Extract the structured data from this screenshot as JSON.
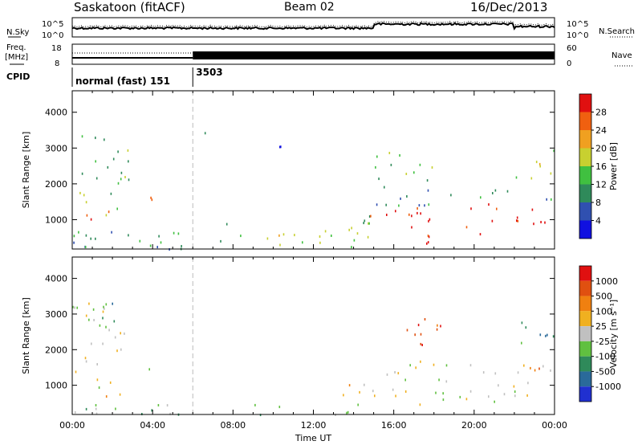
{
  "header": {
    "station": "Saskatoon (fitACF)",
    "beam": "Beam 02",
    "date": "16/Dec/2013"
  },
  "top_panels": {
    "noise_left_label": "N.Sky",
    "noise_right_label": "N.Search",
    "noise_ticks": [
      "10^5",
      "10^0"
    ],
    "freq_label_line1": "Freq.",
    "freq_label_line2": "[MHz]",
    "freq_ticks": [
      "18",
      "8"
    ],
    "nave_label": "Nave",
    "nave_ticks": [
      "60",
      "0"
    ],
    "cpid_label": "CPID",
    "cpid_segments": [
      {
        "text": "normal (fast) 151",
        "start_hour": 0,
        "end_hour": 6
      },
      {
        "text": "3503",
        "start_hour": 6,
        "end_hour": 24
      }
    ]
  },
  "chart_data": [
    {
      "type": "heatmap",
      "name": "power",
      "ylabel": "Slant Range [km]",
      "yticks": [
        1000,
        2000,
        3000,
        4000
      ],
      "ylim": [
        180,
        4600
      ],
      "xlim_hours": [
        0,
        24
      ],
      "colorbar_label": "Power [dB]",
      "colorbar_ticks": [
        "4",
        "8",
        "12",
        "16",
        "20",
        "24",
        "28"
      ],
      "colorbar_colors": [
        "#1010e0",
        "#3050b0",
        "#2f8a5a",
        "#40c040",
        "#c8d030",
        "#f0a020",
        "#f06010",
        "#e01010"
      ],
      "echo_regions": [
        {
          "t0": 0.1,
          "t1": 1.3,
          "r0": 800,
          "r1": 1300,
          "level": 7
        },
        {
          "t0": 0.2,
          "t1": 2.8,
          "r0": 1300,
          "r1": 3400,
          "level": 3
        },
        {
          "t0": 1.0,
          "t1": 2.4,
          "r0": 900,
          "r1": 1300,
          "level": 5
        },
        {
          "t0": 3.5,
          "t1": 4.3,
          "r0": 1400,
          "r1": 2000,
          "level": 5
        },
        {
          "t0": 0.0,
          "t1": 9.0,
          "r0": 200,
          "r1": 700,
          "level": 2
        },
        {
          "t0": 7.0,
          "t1": 8.2,
          "r0": 900,
          "r1": 1200,
          "level": 2
        },
        {
          "t0": 9.0,
          "t1": 14.8,
          "r0": 200,
          "r1": 650,
          "level": 4
        },
        {
          "t0": 12.0,
          "t1": 14.8,
          "r0": 450,
          "r1": 1200,
          "level": 3
        },
        {
          "t0": 14.8,
          "t1": 24.0,
          "r0": 800,
          "r1": 1500,
          "level": 7
        },
        {
          "t0": 15.0,
          "t1": 24.0,
          "r0": 1400,
          "r1": 1900,
          "level": 2
        },
        {
          "t0": 17.0,
          "t1": 20.5,
          "r0": 350,
          "r1": 700,
          "level": 7
        },
        {
          "t0": 15.0,
          "t1": 18.0,
          "r0": 1900,
          "r1": 2900,
          "level": 3
        },
        {
          "t0": 10.0,
          "t1": 10.6,
          "r0": 2900,
          "r1": 3500,
          "level": 1
        },
        {
          "t0": 6.3,
          "t1": 6.8,
          "r0": 3200,
          "r1": 3600,
          "level": 1
        },
        {
          "t0": 22.0,
          "t1": 24.0,
          "r0": 2000,
          "r1": 3000,
          "level": 4
        }
      ]
    },
    {
      "type": "heatmap",
      "name": "velocity",
      "ylabel": "Slant Range [km]",
      "yticks": [
        1000,
        2000,
        3000,
        4000
      ],
      "ylim": [
        180,
        4600
      ],
      "xlim_hours": [
        0,
        24
      ],
      "xticks": [
        "00:00",
        "04:00",
        "08:00",
        "12:00",
        "16:00",
        "20:00",
        "00:00"
      ],
      "xlabel": "Time UT",
      "colorbar_label": "Velocity [m s⁻¹]",
      "colorbar_ticks": [
        "1000",
        "500",
        "100",
        "25",
        "-25",
        "-100",
        "-500",
        "-1000"
      ],
      "colorbar_colors": [
        "#2030d0",
        "#2a6a9a",
        "#2f8a5a",
        "#60c040",
        "#c0c0c0",
        "#f0b020",
        "#f08010",
        "#e05010",
        "#e01010"
      ],
      "echo_regions": [
        {
          "t0": 0.0,
          "t1": 2.8,
          "r0": 900,
          "r1": 3400,
          "level": 4
        },
        {
          "t0": 1.0,
          "t1": 2.2,
          "r0": 2800,
          "r1": 3400,
          "level": 2
        },
        {
          "t0": 1.0,
          "t1": 2.4,
          "r0": 600,
          "r1": 900,
          "level": 5
        },
        {
          "t0": 3.5,
          "t1": 4.2,
          "r0": 1400,
          "r1": 1900,
          "level": 2
        },
        {
          "t0": 0.0,
          "t1": 14.8,
          "r0": 200,
          "r1": 500,
          "level": 3
        },
        {
          "t0": 12.5,
          "t1": 14.8,
          "r0": 400,
          "r1": 1100,
          "level": 5
        },
        {
          "t0": 14.8,
          "t1": 24.0,
          "r0": 700,
          "r1": 1700,
          "level": 4
        },
        {
          "t0": 17.0,
          "t1": 21.0,
          "r0": 400,
          "r1": 700,
          "level": 4
        },
        {
          "t0": 16.5,
          "t1": 18.5,
          "r0": 1900,
          "r1": 2900,
          "level": 7
        },
        {
          "t0": 10.0,
          "t1": 10.6,
          "r0": 2900,
          "r1": 3400,
          "level": 4
        },
        {
          "t0": 22.5,
          "t1": 24.0,
          "r0": 1400,
          "r1": 1800,
          "level": 6
        },
        {
          "t0": 22.0,
          "t1": 24.0,
          "r0": 2100,
          "r1": 3000,
          "level": 2
        }
      ]
    }
  ]
}
